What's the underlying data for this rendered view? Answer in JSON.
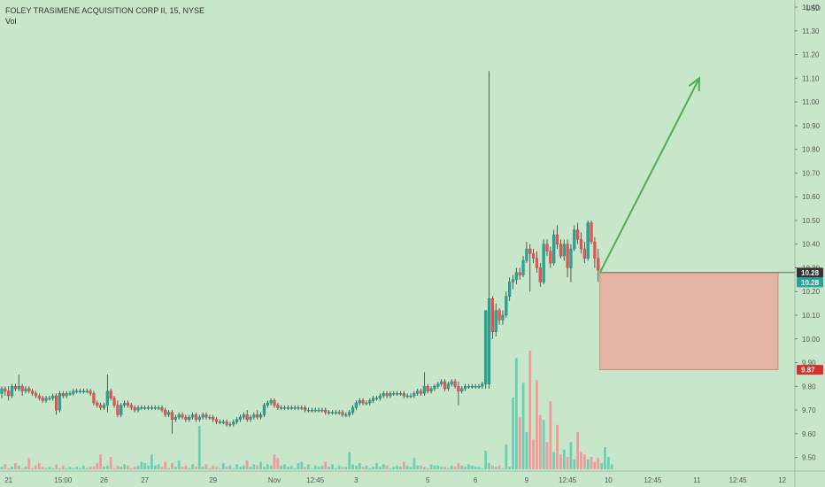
{
  "header": {
    "symbol_line": "FOLEY TRASIMENE ACQUISITION CORP II, 15, NYSE",
    "vol_label": "Vol"
  },
  "chart_data": {
    "type": "candlestick",
    "currency": "USD",
    "ylim": [
      9.45,
      11.43
    ],
    "y_ticks": [
      9.5,
      9.6,
      9.7,
      9.8,
      9.9,
      10.0,
      10.1,
      10.2,
      10.3,
      10.4,
      10.5,
      10.6,
      10.7,
      10.8,
      10.9,
      11.0,
      11.1,
      11.2,
      11.3,
      11.4
    ],
    "y_tick_labels": [
      "9.50",
      "9.60",
      "9.70",
      "9.80",
      "9.90",
      "10.00",
      "10.10",
      "10.20",
      "10.30",
      "10.40",
      "10.50",
      "10.60",
      "10.70",
      "10.80",
      "10.90",
      "11.00",
      "11.10",
      "11.20",
      "11.30",
      "11.40"
    ],
    "x_labels": [
      {
        "bar": 2,
        "label": "21"
      },
      {
        "bar": 18,
        "label": "15:00"
      },
      {
        "bar": 30,
        "label": "26"
      },
      {
        "bar": 42,
        "label": "27"
      },
      {
        "bar": 62,
        "label": "29"
      },
      {
        "bar": 80,
        "label": "Nov"
      },
      {
        "bar": 92,
        "label": "12:45"
      },
      {
        "bar": 104,
        "label": "3"
      },
      {
        "bar": 125,
        "label": "5"
      },
      {
        "bar": 139,
        "label": "6"
      },
      {
        "bar": 154,
        "label": "9"
      },
      {
        "bar": 166,
        "label": "12:45"
      },
      {
        "bar": 178,
        "label": "10"
      },
      {
        "bar": 191,
        "label": "12:45"
      },
      {
        "bar": 204,
        "label": "11"
      },
      {
        "bar": 216,
        "label": "12:45"
      },
      {
        "bar": 229,
        "label": "12"
      }
    ],
    "candles": [
      [
        9.77,
        9.8,
        9.75,
        9.79
      ],
      [
        9.79,
        9.8,
        9.76,
        9.78
      ],
      [
        9.78,
        9.8,
        9.74,
        9.76
      ],
      [
        9.76,
        9.81,
        9.75,
        9.8
      ],
      [
        9.8,
        9.81,
        9.78,
        9.79
      ],
      [
        9.79,
        9.85,
        9.78,
        9.8
      ],
      [
        9.8,
        9.81,
        9.76,
        9.78
      ],
      [
        9.78,
        9.8,
        9.77,
        9.79
      ],
      [
        9.79,
        9.8,
        9.77,
        9.78
      ],
      [
        9.78,
        9.79,
        9.76,
        9.77
      ],
      [
        9.77,
        9.78,
        9.75,
        9.76
      ],
      [
        9.76,
        9.77,
        9.74,
        9.75
      ],
      [
        9.75,
        9.76,
        9.73,
        9.74
      ],
      [
        9.74,
        9.76,
        9.73,
        9.75
      ],
      [
        9.75,
        9.76,
        9.74,
        9.75
      ],
      [
        9.75,
        9.77,
        9.74,
        9.76
      ],
      [
        9.76,
        9.77,
        9.68,
        9.7
      ],
      [
        9.7,
        9.78,
        9.69,
        9.77
      ],
      [
        9.77,
        9.78,
        9.75,
        9.76
      ],
      [
        9.76,
        9.78,
        9.75,
        9.77
      ],
      [
        9.77,
        9.78,
        9.76,
        9.77
      ],
      [
        9.77,
        9.79,
        9.76,
        9.78
      ],
      [
        9.78,
        9.79,
        9.77,
        9.78
      ],
      [
        9.78,
        9.79,
        9.77,
        9.78
      ],
      [
        9.78,
        9.79,
        9.77,
        9.78
      ],
      [
        9.78,
        9.79,
        9.77,
        9.78
      ],
      [
        9.78,
        9.79,
        9.76,
        9.77
      ],
      [
        9.77,
        9.78,
        9.72,
        9.73
      ],
      [
        9.73,
        9.74,
        9.71,
        9.72
      ],
      [
        9.72,
        9.73,
        9.7,
        9.71
      ],
      [
        9.71,
        9.73,
        9.7,
        9.72
      ],
      [
        9.72,
        9.85,
        9.69,
        9.78
      ],
      [
        9.78,
        9.79,
        9.74,
        9.75
      ],
      [
        9.75,
        9.76,
        9.71,
        9.72
      ],
      [
        9.72,
        9.74,
        9.67,
        9.68
      ],
      [
        9.68,
        9.73,
        9.67,
        9.72
      ],
      [
        9.72,
        9.74,
        9.71,
        9.73
      ],
      [
        9.73,
        9.74,
        9.71,
        9.72
      ],
      [
        9.72,
        9.73,
        9.7,
        9.71
      ],
      [
        9.71,
        9.72,
        9.69,
        9.7
      ],
      [
        9.7,
        9.72,
        9.69,
        9.71
      ],
      [
        9.71,
        9.72,
        9.7,
        9.71
      ],
      [
        9.71,
        9.72,
        9.7,
        9.71
      ],
      [
        9.71,
        9.72,
        9.7,
        9.71
      ],
      [
        9.71,
        9.72,
        9.7,
        9.71
      ],
      [
        9.71,
        9.72,
        9.7,
        9.71
      ],
      [
        9.71,
        9.72,
        9.7,
        9.71
      ],
      [
        9.71,
        9.72,
        9.69,
        9.7
      ],
      [
        9.7,
        9.71,
        9.67,
        9.68
      ],
      [
        9.68,
        9.7,
        9.67,
        9.69
      ],
      [
        9.69,
        9.7,
        9.6,
        9.66
      ],
      [
        9.66,
        9.68,
        9.65,
        9.67
      ],
      [
        9.67,
        9.69,
        9.66,
        9.68
      ],
      [
        9.68,
        9.69,
        9.66,
        9.67
      ],
      [
        9.67,
        9.68,
        9.65,
        9.66
      ],
      [
        9.66,
        9.68,
        9.65,
        9.67
      ],
      [
        9.67,
        9.69,
        9.66,
        9.68
      ],
      [
        9.68,
        9.69,
        9.65,
        9.66
      ],
      [
        9.66,
        9.68,
        9.65,
        9.67
      ],
      [
        9.67,
        9.69,
        9.66,
        9.68
      ],
      [
        9.68,
        9.69,
        9.66,
        9.67
      ],
      [
        9.67,
        9.68,
        9.66,
        9.67
      ],
      [
        9.67,
        9.68,
        9.65,
        9.66
      ],
      [
        9.66,
        9.67,
        9.64,
        9.65
      ],
      [
        9.65,
        9.66,
        9.64,
        9.65
      ],
      [
        9.65,
        9.66,
        9.64,
        9.65
      ],
      [
        9.65,
        9.66,
        9.63,
        9.64
      ],
      [
        9.64,
        9.65,
        9.63,
        9.64
      ],
      [
        9.64,
        9.66,
        9.63,
        9.65
      ],
      [
        9.65,
        9.67,
        9.64,
        9.66
      ],
      [
        9.66,
        9.68,
        9.65,
        9.67
      ],
      [
        9.67,
        9.69,
        9.66,
        9.68
      ],
      [
        9.68,
        9.7,
        9.65,
        9.66
      ],
      [
        9.66,
        9.68,
        9.65,
        9.67
      ],
      [
        9.67,
        9.69,
        9.66,
        9.68
      ],
      [
        9.68,
        9.7,
        9.66,
        9.67
      ],
      [
        9.67,
        9.69,
        9.66,
        9.68
      ],
      [
        9.68,
        9.73,
        9.67,
        9.72
      ],
      [
        9.72,
        9.74,
        9.71,
        9.73
      ],
      [
        9.73,
        9.75,
        9.72,
        9.74
      ],
      [
        9.74,
        9.75,
        9.71,
        9.72
      ],
      [
        9.72,
        9.73,
        9.7,
        9.71
      ],
      [
        9.71,
        9.72,
        9.7,
        9.71
      ],
      [
        9.71,
        9.72,
        9.7,
        9.71
      ],
      [
        9.71,
        9.72,
        9.7,
        9.71
      ],
      [
        9.71,
        9.72,
        9.7,
        9.71
      ],
      [
        9.71,
        9.72,
        9.7,
        9.71
      ],
      [
        9.71,
        9.72,
        9.7,
        9.71
      ],
      [
        9.71,
        9.72,
        9.7,
        9.71
      ],
      [
        9.71,
        9.72,
        9.69,
        9.7
      ],
      [
        9.7,
        9.71,
        9.69,
        9.7
      ],
      [
        9.7,
        9.71,
        9.69,
        9.7
      ],
      [
        9.7,
        9.71,
        9.69,
        9.7
      ],
      [
        9.7,
        9.71,
        9.69,
        9.7
      ],
      [
        9.7,
        9.71,
        9.69,
        9.7
      ],
      [
        9.7,
        9.71,
        9.68,
        9.69
      ],
      [
        9.69,
        9.7,
        9.68,
        9.69
      ],
      [
        9.69,
        9.7,
        9.68,
        9.69
      ],
      [
        9.69,
        9.7,
        9.68,
        9.69
      ],
      [
        9.69,
        9.7,
        9.68,
        9.69
      ],
      [
        9.69,
        9.7,
        9.67,
        9.68
      ],
      [
        9.68,
        9.69,
        9.67,
        9.68
      ],
      [
        9.68,
        9.7,
        9.67,
        9.69
      ],
      [
        9.69,
        9.72,
        9.68,
        9.71
      ],
      [
        9.71,
        9.74,
        9.7,
        9.73
      ],
      [
        9.73,
        9.75,
        9.72,
        9.74
      ],
      [
        9.74,
        9.75,
        9.72,
        9.73
      ],
      [
        9.73,
        9.74,
        9.72,
        9.73
      ],
      [
        9.73,
        9.75,
        9.72,
        9.74
      ],
      [
        9.74,
        9.76,
        9.73,
        9.75
      ],
      [
        9.75,
        9.76,
        9.74,
        9.75
      ],
      [
        9.75,
        9.77,
        9.74,
        9.76
      ],
      [
        9.76,
        9.78,
        9.75,
        9.77
      ],
      [
        9.77,
        9.78,
        9.75,
        9.76
      ],
      [
        9.76,
        9.78,
        9.75,
        9.77
      ],
      [
        9.77,
        9.78,
        9.76,
        9.77
      ],
      [
        9.77,
        9.78,
        9.76,
        9.77
      ],
      [
        9.77,
        9.78,
        9.76,
        9.77
      ],
      [
        9.77,
        9.78,
        9.75,
        9.76
      ],
      [
        9.76,
        9.77,
        9.75,
        9.76
      ],
      [
        9.76,
        9.77,
        9.75,
        9.76
      ],
      [
        9.76,
        9.78,
        9.75,
        9.77
      ],
      [
        9.77,
        9.79,
        9.76,
        9.78
      ],
      [
        9.78,
        9.79,
        9.76,
        9.77
      ],
      [
        9.77,
        9.86,
        9.76,
        9.8
      ],
      [
        9.8,
        9.81,
        9.77,
        9.78
      ],
      [
        9.78,
        9.8,
        9.77,
        9.79
      ],
      [
        9.79,
        9.81,
        9.78,
        9.8
      ],
      [
        9.8,
        9.82,
        9.79,
        9.81
      ],
      [
        9.81,
        9.83,
        9.8,
        9.82
      ],
      [
        9.82,
        9.83,
        9.78,
        9.79
      ],
      [
        9.79,
        9.82,
        9.78,
        9.81
      ],
      [
        9.81,
        9.83,
        9.8,
        9.82
      ],
      [
        9.82,
        9.83,
        9.79,
        9.8
      ],
      [
        9.8,
        9.82,
        9.72,
        9.78
      ],
      [
        9.78,
        9.8,
        9.77,
        9.79
      ],
      [
        9.79,
        9.81,
        9.78,
        9.8
      ],
      [
        9.8,
        9.81,
        9.79,
        9.8
      ],
      [
        9.8,
        9.81,
        9.79,
        9.8
      ],
      [
        9.8,
        9.81,
        9.79,
        9.8
      ],
      [
        9.8,
        9.81,
        9.79,
        9.8
      ],
      [
        9.8,
        9.82,
        9.79,
        9.81
      ],
      [
        9.81,
        10.12,
        9.79,
        10.12
      ],
      [
        9.81,
        11.13,
        9.79,
        10.17
      ],
      [
        10.17,
        10.18,
        10.0,
        10.03
      ],
      [
        10.03,
        10.15,
        10.01,
        10.12
      ],
      [
        10.12,
        10.13,
        10.06,
        10.08
      ],
      [
        10.08,
        10.12,
        10.06,
        10.1
      ],
      [
        10.1,
        10.2,
        10.09,
        10.18
      ],
      [
        10.18,
        10.26,
        10.16,
        10.24
      ],
      [
        10.24,
        10.27,
        10.21,
        10.25
      ],
      [
        10.25,
        10.3,
        10.23,
        10.28
      ],
      [
        10.28,
        10.3,
        10.25,
        10.27
      ],
      [
        10.27,
        10.35,
        10.26,
        10.33
      ],
      [
        10.33,
        10.41,
        10.32,
        10.38
      ],
      [
        10.38,
        10.4,
        10.2,
        10.36
      ],
      [
        10.36,
        10.38,
        10.32,
        10.34
      ],
      [
        10.34,
        10.37,
        10.28,
        10.3
      ],
      [
        10.3,
        10.32,
        10.22,
        10.24
      ],
      [
        10.24,
        10.42,
        10.23,
        10.4
      ],
      [
        10.4,
        10.42,
        10.35,
        10.37
      ],
      [
        10.37,
        10.39,
        10.3,
        10.32
      ],
      [
        10.32,
        10.46,
        10.31,
        10.44
      ],
      [
        10.44,
        10.48,
        10.38,
        10.4
      ],
      [
        10.4,
        10.42,
        10.34,
        10.35
      ],
      [
        10.35,
        10.42,
        10.33,
        10.4
      ],
      [
        10.4,
        10.42,
        10.26,
        10.3
      ],
      [
        10.3,
        10.4,
        10.24,
        10.38
      ],
      [
        10.38,
        10.48,
        10.37,
        10.46
      ],
      [
        10.46,
        10.49,
        10.4,
        10.42
      ],
      [
        10.42,
        10.45,
        10.36,
        10.38
      ],
      [
        10.38,
        10.41,
        10.32,
        10.34
      ],
      [
        10.34,
        10.5,
        10.33,
        10.49
      ],
      [
        10.49,
        10.5,
        10.4,
        10.41
      ],
      [
        10.41,
        10.43,
        10.3,
        10.34
      ],
      [
        10.34,
        10.38,
        10.24,
        10.29
      ]
    ],
    "volumes": [
      2,
      4,
      1,
      2,
      5,
      3,
      1,
      2,
      9,
      1,
      3,
      5,
      2,
      1,
      2,
      1,
      4,
      1,
      3,
      1,
      2,
      1,
      2,
      1,
      3,
      1,
      2,
      2,
      5,
      12,
      2,
      3,
      10,
      1,
      3,
      2,
      4,
      3,
      1,
      2,
      3,
      6,
      5,
      3,
      12,
      3,
      4,
      2,
      6,
      1,
      5,
      2,
      7,
      2,
      3,
      1,
      4,
      2,
      35,
      2,
      4,
      1,
      3,
      2,
      1,
      5,
      2,
      3,
      1,
      4,
      2,
      3,
      7,
      2,
      4,
      3,
      6,
      2,
      4,
      3,
      12,
      9,
      3,
      4,
      2,
      3,
      1,
      5,
      6,
      2,
      4,
      1,
      3,
      2,
      3,
      6,
      2,
      4,
      1,
      3,
      2,
      2,
      14,
      4,
      3,
      5,
      2,
      3,
      1,
      2,
      5,
      2,
      4,
      3,
      1,
      2,
      3,
      2,
      6,
      3,
      2,
      9,
      3,
      3,
      2,
      1,
      4,
      3,
      3,
      2,
      2,
      1,
      3,
      2,
      5,
      3,
      2,
      4,
      3,
      2,
      2,
      1,
      15,
      5,
      3,
      2,
      3,
      1,
      20,
      2,
      58,
      90,
      42,
      70,
      30,
      96,
      24,
      72,
      44,
      40,
      22,
      55,
      14,
      36,
      12,
      16,
      10,
      22,
      8,
      30,
      14,
      12,
      8,
      10,
      6,
      9,
      5,
      18,
      10,
      4
    ],
    "last_price": "10.28",
    "last_price_2": "10.28",
    "stop_price": "9.87",
    "projection": {
      "from": 10.28,
      "to": 11.1
    },
    "risk_zone": {
      "top": 10.28,
      "bottom": 9.87
    }
  },
  "colors": {
    "background": "#c8e6c9",
    "up": "#26a69a",
    "down": "#ef5350",
    "wick": "#3a3a3a",
    "vol_up": "#6ccfb5",
    "vol_down": "#f19a9a",
    "arrow": "#4caf50",
    "risk_fill": "#e7a99c",
    "risk_border": "#c76b5c",
    "last_price_bg": "#26a69a",
    "last_price_dark_bg": "#333333",
    "stop_bg": "#d32f2f",
    "axis_text": "#555555"
  }
}
